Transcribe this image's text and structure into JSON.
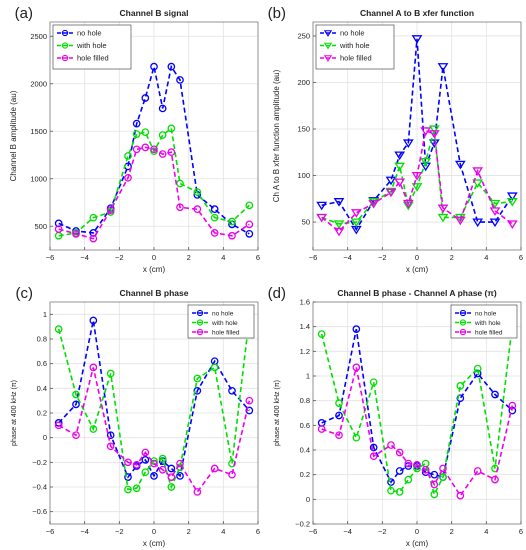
{
  "chart_data": [
    {
      "type": "line",
      "panel_label": "(a)",
      "title": "Channel B signal",
      "xlabel": "x (cm)",
      "ylabel": "Channel B amplitude (au)",
      "xlim": [
        -6,
        6
      ],
      "ylim": [
        250,
        2650
      ],
      "xticks": [
        -6,
        -4,
        -2,
        0,
        2,
        4,
        6
      ],
      "yticks": [
        500,
        1000,
        1500,
        2000,
        2500
      ],
      "grid": true,
      "legend_position": "top-left",
      "marker": "circle",
      "series": [
        {
          "name": "no hole",
          "color": "#0000ff",
          "x": [
            -5.5,
            -4.5,
            -3.5,
            -2.5,
            -1.5,
            -1,
            -0.5,
            0,
            0.5,
            1,
            1.5,
            2.5,
            3.5,
            4.5,
            5.5
          ],
          "y": [
            530,
            450,
            430,
            690,
            1130,
            1580,
            1850,
            2180,
            1740,
            2180,
            2040,
            830,
            680,
            520,
            420
          ]
        },
        {
          "name": "with hole",
          "color": "#00e000",
          "x": [
            -5.5,
            -4.5,
            -3.5,
            -2.5,
            -1.5,
            -1,
            -0.5,
            0,
            0.5,
            1,
            1.5,
            2.5,
            3.5,
            4.5,
            5.5
          ],
          "y": [
            400,
            430,
            590,
            650,
            1240,
            1470,
            1490,
            1290,
            1460,
            1530,
            950,
            860,
            590,
            550,
            720
          ]
        },
        {
          "name": "hole filled",
          "color": "#ee00ee",
          "x": [
            -5.5,
            -4.5,
            -3.5,
            -2.5,
            -1.5,
            -1,
            -0.5,
            0,
            0.5,
            1,
            1.5,
            2.5,
            3.5,
            4.5,
            5.5
          ],
          "y": [
            470,
            420,
            370,
            670,
            1010,
            1310,
            1330,
            1310,
            1260,
            1280,
            700,
            680,
            430,
            400,
            520
          ]
        }
      ]
    },
    {
      "type": "line",
      "panel_label": "(b)",
      "title": "Channel A to B xfer function",
      "xlabel": "x (cm)",
      "ylabel": "Ch A to B xfer function amplitude (au)",
      "xlim": [
        -6,
        6
      ],
      "ylim": [
        20,
        265
      ],
      "xticks": [
        -6,
        -4,
        -2,
        0,
        2,
        4,
        6
      ],
      "yticks": [
        50,
        100,
        150,
        200,
        250
      ],
      "grid": true,
      "legend_position": "top-left",
      "marker": "triangle-down",
      "series": [
        {
          "name": "no hole",
          "color": "#0000ff",
          "x": [
            -5.5,
            -4.5,
            -3.5,
            -2.5,
            -1.5,
            -1,
            -0.5,
            0,
            0.5,
            1,
            1.5,
            2.5,
            3.5,
            4.5,
            5.5
          ],
          "y": [
            68,
            72,
            42,
            73,
            95,
            122,
            135,
            247,
            110,
            135,
            217,
            112,
            50,
            50,
            78
          ]
        },
        {
          "name": "with hole",
          "color": "#00e000",
          "x": [
            -5.5,
            -4.5,
            -3.5,
            -2.5,
            -1.5,
            -1,
            -0.5,
            0,
            0.5,
            1,
            1.5,
            2.5,
            3.5,
            4.5,
            5.5
          ],
          "y": [
            55,
            48,
            50,
            72,
            83,
            110,
            68,
            88,
            115,
            150,
            55,
            55,
            92,
            70,
            72
          ]
        },
        {
          "name": "hole filled",
          "color": "#ee00ee",
          "x": [
            -5.5,
            -4.5,
            -3.5,
            -2.5,
            -1.5,
            -1,
            -0.5,
            0,
            0.5,
            1,
            1.5,
            2.5,
            3.5,
            4.5,
            5.5
          ],
          "y": [
            55,
            40,
            60,
            70,
            82,
            93,
            70,
            100,
            148,
            145,
            65,
            52,
            105,
            62,
            48
          ]
        }
      ]
    },
    {
      "type": "line",
      "panel_label": "(c)",
      "title": "Channel B phase",
      "xlabel": "x (cm)",
      "ylabel": "phase at 400 kHz (π)",
      "xlim": [
        -6,
        6
      ],
      "ylim": [
        -0.7,
        1.1
      ],
      "xticks": [
        -6,
        -4,
        -2,
        0,
        2,
        4,
        6
      ],
      "yticks": [
        -0.6,
        -0.4,
        -0.2,
        0,
        0.2,
        0.4,
        0.6,
        0.8,
        1
      ],
      "grid": true,
      "legend_position": "top-right",
      "marker": "circle",
      "series": [
        {
          "name": "no hole",
          "color": "#0000ff",
          "x": [
            -5.5,
            -4.5,
            -3.5,
            -2.5,
            -1.5,
            -1,
            -0.5,
            0,
            0.5,
            1,
            1.5,
            2.5,
            3.5,
            4.5,
            5.5
          ],
          "y": [
            0.12,
            0.27,
            0.95,
            0.02,
            -0.32,
            -0.23,
            -0.18,
            -0.31,
            -0.19,
            -0.25,
            -0.31,
            0.38,
            0.62,
            0.38,
            0.22
          ]
        },
        {
          "name": "with hole",
          "color": "#00e000",
          "x": [
            -5.5,
            -4.5,
            -3.5,
            -2.5,
            -1.5,
            -1,
            -0.5,
            0,
            0.5,
            1,
            1.5,
            2.5,
            3.5,
            4.5,
            5.5
          ],
          "y": [
            0.88,
            0.35,
            0.07,
            0.52,
            -0.42,
            -0.41,
            -0.28,
            -0.19,
            -0.17,
            -0.4,
            -0.24,
            0.48,
            0.57,
            -0.21,
            0.97
          ]
        },
        {
          "name": "hole filled",
          "color": "#ee00ee",
          "x": [
            -5.5,
            -4.5,
            -3.5,
            -2.5,
            -1.5,
            -1,
            -0.5,
            0,
            0.5,
            1,
            1.5,
            2.5,
            3.5,
            4.5,
            5.5
          ],
          "y": [
            0.1,
            0.02,
            0.57,
            -0.07,
            -0.2,
            -0.22,
            -0.12,
            -0.21,
            -0.26,
            -0.32,
            -0.21,
            -0.44,
            -0.25,
            -0.3,
            0.3
          ]
        }
      ]
    },
    {
      "type": "line",
      "panel_label": "(d)",
      "title": "Channel B phase - Channel A phase (π)",
      "xlabel": "x (cm)",
      "ylabel": "phase at 400 kHz (π)",
      "xlim": [
        -6,
        6
      ],
      "ylim": [
        -0.2,
        1.6
      ],
      "xticks": [
        -6,
        -4,
        -2,
        0,
        2,
        4,
        6
      ],
      "yticks": [
        -0.2,
        0,
        0.2,
        0.4,
        0.6,
        0.8,
        1,
        1.2,
        1.4,
        1.6
      ],
      "grid": true,
      "legend_position": "top-right",
      "marker": "circle",
      "series": [
        {
          "name": "no hole",
          "color": "#0000ff",
          "x": [
            -5.5,
            -4.5,
            -3.5,
            -2.5,
            -1.5,
            -1,
            -0.5,
            0,
            0.5,
            1,
            1.5,
            2.5,
            3.5,
            4.5,
            5.5
          ],
          "y": [
            0.62,
            0.68,
            1.38,
            0.42,
            0.14,
            0.23,
            0.27,
            0.27,
            0.22,
            0.2,
            0.18,
            0.82,
            1.02,
            0.85,
            0.72
          ]
        },
        {
          "name": "with hole",
          "color": "#00e000",
          "x": [
            -5.5,
            -4.5,
            -3.5,
            -2.5,
            -1.5,
            -1,
            -0.5,
            0,
            0.5,
            1,
            1.5,
            2.5,
            3.5,
            4.5,
            5.5
          ],
          "y": [
            1.34,
            0.78,
            0.5,
            0.95,
            0.07,
            0.06,
            0.16,
            0.25,
            0.29,
            0.04,
            0.18,
            0.92,
            1.06,
            0.25,
            1.41
          ]
        },
        {
          "name": "hole filled",
          "color": "#ee00ee",
          "x": [
            -5.5,
            -4.5,
            -3.5,
            -2.5,
            -1.5,
            -1,
            -0.5,
            0,
            0.5,
            1,
            1.5,
            2.5,
            3.5,
            4.5,
            5.5
          ],
          "y": [
            0.57,
            0.52,
            1.07,
            0.35,
            0.44,
            0.38,
            0.29,
            0.28,
            0.24,
            0.12,
            0.25,
            0.03,
            0.23,
            0.16,
            0.76
          ]
        }
      ]
    }
  ]
}
